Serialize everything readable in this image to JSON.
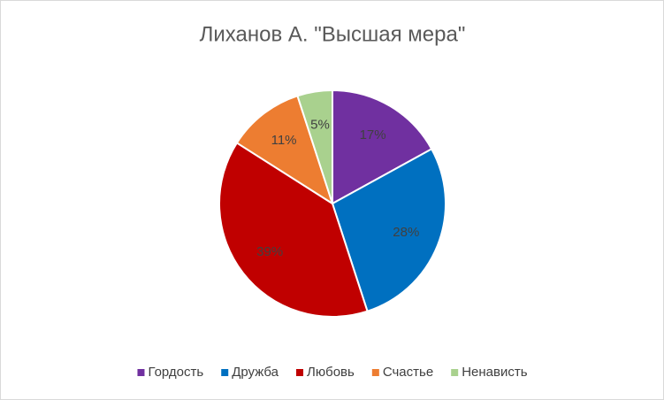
{
  "chart_data": {
    "type": "pie",
    "title": "Лиханов А. \"Высшая мера\"",
    "categories": [
      "Гордость",
      "Дружба",
      "Любовь",
      "Счастье",
      "Ненависть"
    ],
    "values": [
      17,
      28,
      39,
      11,
      5
    ],
    "value_labels": [
      "17%",
      "28%",
      "39%",
      "11%",
      "5%"
    ],
    "colors": [
      "#7030a0",
      "#0070c0",
      "#c00000",
      "#ed7d31",
      "#a9d18e"
    ],
    "legend": "bottom"
  }
}
